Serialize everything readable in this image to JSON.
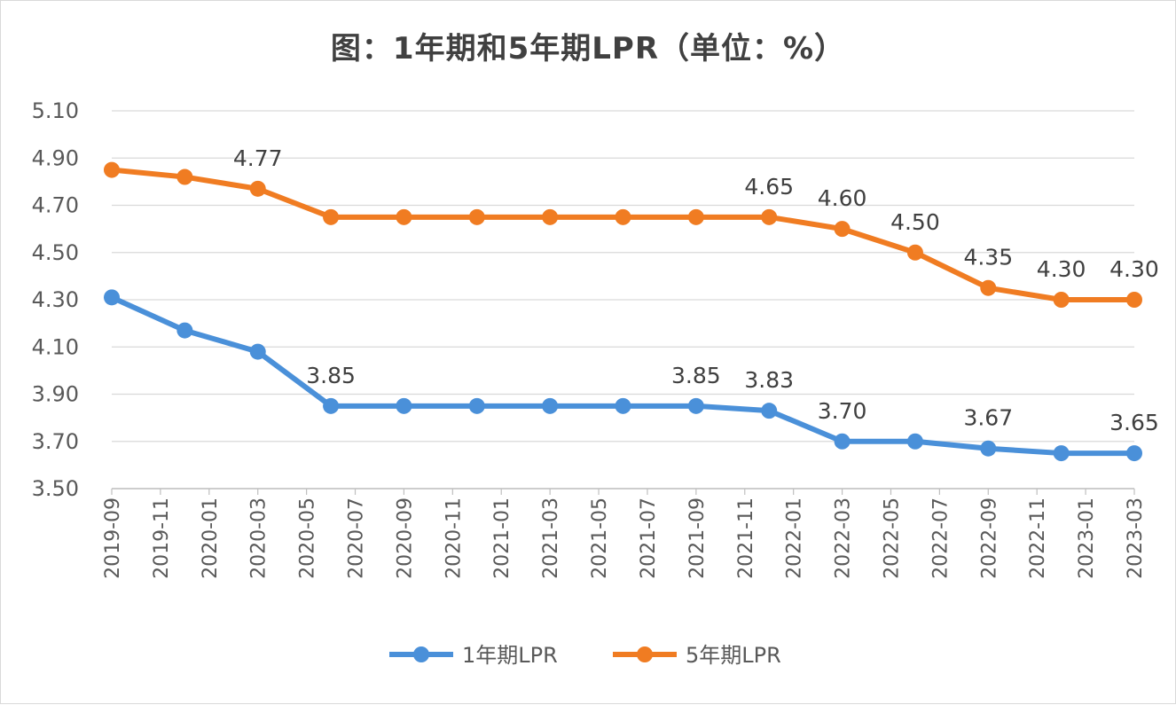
{
  "chart_data": {
    "type": "line",
    "title": "图：1年期和5年期LPR（单位：%）",
    "xlabel": "",
    "ylabel": "",
    "ylim": [
      3.5,
      5.1
    ],
    "yticks": [
      "3.50",
      "3.70",
      "3.90",
      "4.10",
      "4.30",
      "4.50",
      "4.70",
      "4.90",
      "5.10"
    ],
    "xticks": [
      "2019-09",
      "2019-11",
      "2020-01",
      "2020-03",
      "2020-05",
      "2020-07",
      "2020-09",
      "2020-11",
      "2021-01",
      "2021-03",
      "2021-05",
      "2021-07",
      "2021-09",
      "2021-11",
      "2022-01",
      "2022-03",
      "2022-05",
      "2022-07",
      "2022-09",
      "2022-11",
      "2023-01",
      "2023-03"
    ],
    "x": [
      "2019-09",
      "2019-12",
      "2020-03",
      "2020-06",
      "2020-09",
      "2020-12",
      "2021-03",
      "2021-06",
      "2021-09",
      "2021-12",
      "2022-03",
      "2022-06",
      "2022-09",
      "2022-12",
      "2023-03"
    ],
    "grid": true,
    "legend": "bottom",
    "series": [
      {
        "name": "1年期LPR",
        "color": "#4a90d9",
        "values": [
          4.31,
          4.17,
          4.08,
          3.85,
          3.85,
          3.85,
          3.85,
          3.85,
          3.85,
          3.83,
          3.7,
          3.7,
          3.67,
          3.65,
          3.65
        ],
        "data_labels": {
          "3": "3.85",
          "8": "3.85",
          "9": "3.83",
          "10": "3.70",
          "12": "3.67",
          "14": "3.65"
        }
      },
      {
        "name": "5年期LPR",
        "color": "#f07c22",
        "values": [
          4.85,
          4.82,
          4.77,
          4.65,
          4.65,
          4.65,
          4.65,
          4.65,
          4.65,
          4.65,
          4.6,
          4.5,
          4.35,
          4.3,
          4.3
        ],
        "data_labels": {
          "2": "4.77",
          "9": "4.65",
          "10": "4.60",
          "11": "4.50",
          "12": "4.35",
          "13": "4.30",
          "14": "4.30"
        }
      }
    ]
  }
}
